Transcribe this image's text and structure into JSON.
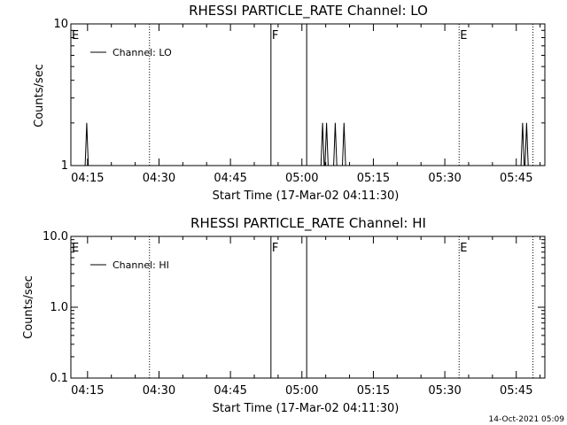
{
  "footer": {
    "timestamp": "14-Oct-2021 05:09"
  },
  "chart_data": [
    {
      "type": "line",
      "title": "RHESSI PARTICLE_RATE Channel: LO",
      "xlabel": "Start Time (17-Mar-02 04:11:30)",
      "ylabel": "Counts/sec",
      "yscale": "log",
      "xlim": [
        "04:11:30",
        "05:51:00"
      ],
      "ylim": [
        1,
        10
      ],
      "xticks": [
        "04:15",
        "04:30",
        "04:45",
        "05:00",
        "05:15",
        "05:30",
        "05:45"
      ],
      "yticks": [
        "1",
        "10"
      ],
      "legend": {
        "label": "Channel: LO",
        "position": "top-left"
      },
      "markers": [
        {
          "time": "04:11:30",
          "label": "E",
          "style": "dotted"
        },
        {
          "time": "04:28:00",
          "label": "",
          "style": "dotted"
        },
        {
          "time": "04:53:30",
          "label": "F",
          "style": "solid"
        },
        {
          "time": "05:01:00",
          "label": "",
          "style": "solid"
        },
        {
          "time": "05:33:00",
          "label": "E",
          "style": "dotted"
        },
        {
          "time": "05:48:30",
          "label": "",
          "style": "dotted"
        }
      ],
      "series": [
        {
          "name": "Channel: LO",
          "segments": [
            {
              "x": [
                "04:14:30",
                "04:14:40",
                "04:14:50",
                "04:15:00",
                "04:15:10"
              ],
              "y": [
                1,
                1.4,
                2,
                1.4,
                1
              ]
            },
            {
              "x": [
                "05:04:00",
                "05:04:10",
                "05:04:20",
                "05:04:30",
                "05:04:40",
                "05:04:50",
                "05:05:00",
                "05:05:10",
                "05:05:20",
                "05:05:30"
              ],
              "y": [
                1,
                1.4,
                2,
                1.4,
                1,
                1,
                1.4,
                2,
                1.4,
                1
              ]
            },
            {
              "x": [
                "05:06:40",
                "05:06:50",
                "05:07:00",
                "05:07:10",
                "05:07:20"
              ],
              "y": [
                1,
                1.4,
                2,
                1.4,
                1
              ]
            },
            {
              "x": [
                "05:08:30",
                "05:08:40",
                "05:08:50",
                "05:09:00",
                "05:09:10"
              ],
              "y": [
                1,
                1.4,
                2,
                1.4,
                1
              ]
            },
            {
              "x": [
                "05:46:00",
                "05:46:10",
                "05:46:20",
                "05:46:30",
                "05:46:40",
                "05:46:50",
                "05:47:00",
                "05:47:10",
                "05:47:20",
                "05:47:30"
              ],
              "y": [
                1,
                1.4,
                2,
                1.4,
                1,
                1,
                1.4,
                2,
                1.4,
                1
              ]
            }
          ]
        }
      ],
      "grid": false
    },
    {
      "type": "line",
      "title": "RHESSI PARTICLE_RATE Channel: HI",
      "xlabel": "Start Time (17-Mar-02 04:11:30)",
      "ylabel": "Counts/sec",
      "yscale": "log",
      "xlim": [
        "04:11:30",
        "05:51:00"
      ],
      "ylim": [
        0.1,
        10
      ],
      "xticks": [
        "04:15",
        "04:30",
        "04:45",
        "05:00",
        "05:15",
        "05:30",
        "05:45"
      ],
      "yticks": [
        "0.1",
        "1.0",
        "10.0"
      ],
      "legend": {
        "label": "Channel: HI",
        "position": "top-left"
      },
      "markers": [
        {
          "time": "04:11:30",
          "label": "E",
          "style": "dotted"
        },
        {
          "time": "04:28:00",
          "label": "",
          "style": "dotted"
        },
        {
          "time": "04:53:30",
          "label": "F",
          "style": "solid"
        },
        {
          "time": "05:01:00",
          "label": "",
          "style": "solid"
        },
        {
          "time": "05:33:00",
          "label": "E",
          "style": "dotted"
        },
        {
          "time": "05:48:30",
          "label": "",
          "style": "dotted"
        }
      ],
      "series": [
        {
          "name": "Channel: HI",
          "segments": []
        }
      ],
      "grid": false
    }
  ]
}
